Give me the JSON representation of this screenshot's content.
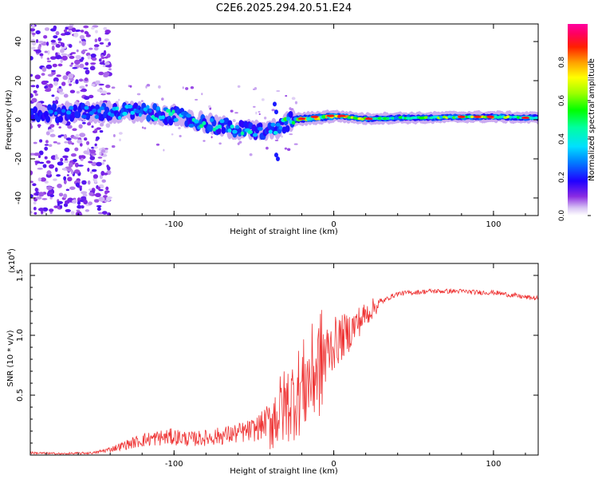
{
  "title": "C2E6.2025.294.20.51.E24",
  "chart_data": [
    {
      "type": "heatmap",
      "name": "spectrogram",
      "xlabel": "Height of straight line (km)",
      "ylabel": "Frequency (Hz)",
      "xlim": [
        -190,
        128
      ],
      "ylim": [
        -49,
        49
      ],
      "xticks": [
        -100,
        0,
        100
      ],
      "yticks": [
        -40,
        -20,
        0,
        20,
        40
      ],
      "colorbar": {
        "label": "Normalized spectral amplitude",
        "range": [
          0,
          1
        ],
        "ticks": [
          0.0,
          0.2,
          0.4,
          0.6,
          0.8
        ]
      },
      "ridge": [
        {
          "x": -190,
          "freq": 3,
          "amp": 0.25
        },
        {
          "x": -150,
          "freq": 4,
          "amp": 0.3
        },
        {
          "x": -120,
          "freq": 4,
          "amp": 0.45
        },
        {
          "x": -100,
          "freq": 2,
          "amp": 0.45
        },
        {
          "x": -80,
          "freq": -2,
          "amp": 0.45
        },
        {
          "x": -60,
          "freq": -5,
          "amp": 0.45
        },
        {
          "x": -40,
          "freq": -6,
          "amp": 0.35
        },
        {
          "x": -25,
          "freq": 0,
          "amp": 0.6
        },
        {
          "x": -10,
          "freq": 1,
          "amp": 0.75
        },
        {
          "x": 0,
          "freq": 2,
          "amp": 0.8
        },
        {
          "x": 20,
          "freq": 0.5,
          "amp": 0.7
        },
        {
          "x": 40,
          "freq": 1,
          "amp": 0.55
        },
        {
          "x": 60,
          "freq": 1,
          "amp": 0.6
        },
        {
          "x": 80,
          "freq": 1.5,
          "amp": 0.7
        },
        {
          "x": 100,
          "freq": 1.5,
          "amp": 0.75
        },
        {
          "x": 128,
          "freq": 1,
          "amp": 0.5
        }
      ]
    },
    {
      "type": "line",
      "name": "snr",
      "xlabel": "Height of straight line (km)",
      "ylabel": "SNR (10 * v/v)",
      "multiplier_label": "(x10",
      "multiplier_exp": "4",
      "xlim": [
        -190,
        128
      ],
      "ylim": [
        0,
        1.6
      ],
      "xticks": [
        -100,
        0,
        100
      ],
      "yticks": [
        0.5,
        1.0,
        1.5
      ],
      "color": "#ee3333",
      "x": [
        -190,
        -170,
        -150,
        -140,
        -130,
        -120,
        -110,
        -100,
        -90,
        -80,
        -70,
        -60,
        -50,
        -45,
        -40,
        -35,
        -30,
        -25,
        -20,
        -15,
        -10,
        -5,
        0,
        5,
        10,
        15,
        20,
        25,
        30,
        35,
        40,
        50,
        60,
        70,
        80,
        90,
        100,
        110,
        120,
        128
      ],
      "values": [
        0.02,
        0.01,
        0.02,
        0.05,
        0.09,
        0.13,
        0.15,
        0.16,
        0.14,
        0.15,
        0.17,
        0.19,
        0.22,
        0.26,
        0.32,
        0.38,
        0.45,
        0.52,
        0.6,
        0.68,
        0.78,
        0.88,
        0.95,
        1.0,
        1.05,
        1.12,
        1.18,
        1.24,
        1.28,
        1.32,
        1.35,
        1.36,
        1.37,
        1.37,
        1.37,
        1.36,
        1.36,
        1.34,
        1.32,
        1.31
      ]
    }
  ]
}
